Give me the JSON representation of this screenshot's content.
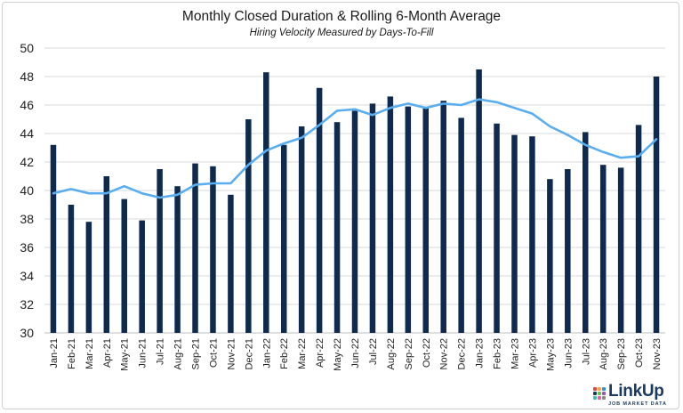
{
  "chart_data": {
    "type": "bar",
    "title": "Monthly Closed Duration & Rolling 6-Month Average",
    "subtitle": "Hiring Velocity Measured by Days-To-Fill",
    "categories": [
      "Jan-21",
      "Feb-21",
      "Mar-21",
      "Apr-21",
      "May-21",
      "Jun-21",
      "Jul-21",
      "Aug-21",
      "Sep-21",
      "Oct-21",
      "Nov-21",
      "Dec-21",
      "Jan-22",
      "Feb-22",
      "Mar-22",
      "Apr-22",
      "May-22",
      "Jun-22",
      "Jul-22",
      "Aug-22",
      "Sep-22",
      "Oct-22",
      "Nov-22",
      "Dec-22",
      "Jan-23",
      "Feb-23",
      "Mar-23",
      "Apr-23",
      "May-23",
      "Jun-23",
      "Jul-23",
      "Aug-23",
      "Sep-23",
      "Oct-23",
      "Nov-23"
    ],
    "series": [
      {
        "type": "bar",
        "color": "#0e2a4e",
        "values": [
          43.2,
          39.0,
          37.8,
          41.0,
          39.4,
          37.9,
          41.5,
          40.3,
          41.9,
          41.7,
          39.7,
          45.0,
          48.3,
          43.2,
          44.5,
          47.2,
          44.8,
          45.6,
          46.1,
          46.6,
          45.9,
          45.8,
          46.3,
          45.1,
          48.5,
          44.7,
          43.9,
          43.8,
          40.8,
          41.5,
          44.1,
          41.8,
          41.6,
          44.6,
          48.0
        ]
      },
      {
        "type": "line",
        "color": "#5aaef0",
        "values": [
          39.8,
          40.1,
          39.8,
          39.8,
          40.3,
          39.8,
          39.5,
          39.7,
          40.4,
          40.5,
          40.5,
          41.8,
          42.8,
          43.3,
          43.7,
          44.6,
          45.6,
          45.7,
          45.3,
          45.8,
          46.1,
          45.8,
          46.1,
          46.0,
          46.4,
          46.2,
          45.8,
          45.4,
          44.5,
          43.9,
          43.2,
          42.7,
          42.3,
          42.4,
          43.6
        ]
      }
    ],
    "ylim": [
      30,
      50
    ],
    "yticks": [
      "30",
      "32",
      "34",
      "36",
      "38",
      "40",
      "42",
      "44",
      "46",
      "48",
      "50"
    ],
    "grid": true,
    "legend": "none"
  },
  "logo": {
    "name": "LinkUp",
    "tagline": "JOB MARKET DATA",
    "colors": [
      "#e8453c",
      "#f2a93b",
      "#3b8fd9",
      "#1c3a5f",
      "#6cc04a",
      "#9b59b6",
      "#2ec4b6",
      "#f25c9a",
      "#8a8a8a"
    ]
  }
}
